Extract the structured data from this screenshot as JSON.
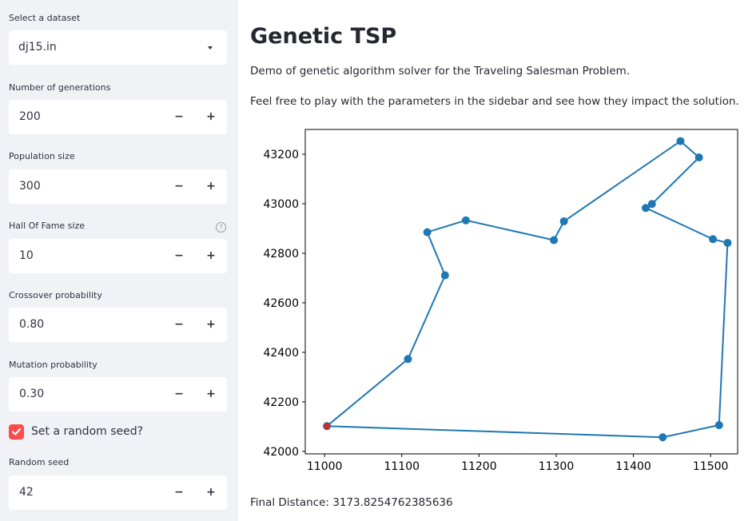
{
  "sidebar": {
    "dataset": {
      "label": "Select a dataset",
      "value": "dj15.in"
    },
    "generations": {
      "label": "Number of generations",
      "value": "200"
    },
    "population": {
      "label": "Population size",
      "value": "300"
    },
    "hof": {
      "label": "Hall Of Fame size",
      "value": "10"
    },
    "crossover": {
      "label": "Crossover probability",
      "value": "0.80"
    },
    "mutation": {
      "label": "Mutation probability",
      "value": "0.30"
    },
    "random_seed_toggle": {
      "label": "Set a random seed?",
      "checked": true
    },
    "seed": {
      "label": "Random seed",
      "value": "42"
    },
    "stepper": {
      "minus": "−",
      "plus": "+"
    },
    "help_glyph": "?"
  },
  "main": {
    "title": "Genetic TSP",
    "description": "Demo of genetic algorithm solver for the Traveling Salesman Problem.",
    "instructions": "Feel free to play with the parameters in the sidebar and see how they impact the solution.",
    "final_distance": "Final Distance: 3173.8254762385636"
  },
  "colors": {
    "accent": "#ff4b4b",
    "line": "#1f77b4",
    "start": "#d62728"
  },
  "chart_data": {
    "type": "line",
    "xlim": [
      10975,
      11535
    ],
    "ylim": [
      41990,
      43300
    ],
    "xticks": [
      11000,
      11100,
      11200,
      11300,
      11400,
      11500
    ],
    "yticks": [
      42000,
      42200,
      42400,
      42600,
      42800,
      43000,
      43200
    ],
    "grid": false,
    "route": [
      [
        11003,
        42102
      ],
      [
        11108,
        42373
      ],
      [
        11156,
        42711
      ],
      [
        11133,
        42885
      ],
      [
        11183,
        42933
      ],
      [
        11297,
        42853
      ],
      [
        11310,
        42929
      ],
      [
        11461,
        43253
      ],
      [
        11485,
        43187
      ],
      [
        11424,
        42999
      ],
      [
        11416,
        42983
      ],
      [
        11503,
        42857
      ],
      [
        11522,
        42842
      ],
      [
        11511,
        42106
      ],
      [
        11438,
        42057
      ],
      [
        11003,
        42102
      ]
    ],
    "start_point": [
      11003,
      42102
    ]
  }
}
